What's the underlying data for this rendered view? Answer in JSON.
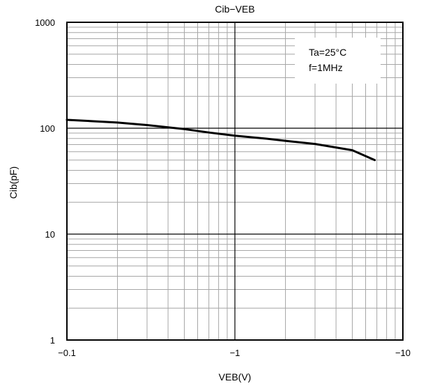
{
  "chart_data": {
    "type": "line",
    "title": "Cib−VEB",
    "xlabel": "VEB(V)",
    "ylabel": "Cib(pF)",
    "x_scale": "log",
    "y_scale": "log",
    "x_direction": "reversed",
    "xlim": [
      -0.1,
      -10
    ],
    "ylim": [
      1,
      1000
    ],
    "x_ticks": [
      {
        "value": -0.1,
        "label": "−0.1"
      },
      {
        "value": -1,
        "label": "−1"
      },
      {
        "value": -10,
        "label": "−10"
      }
    ],
    "y_ticks": [
      {
        "value": 1,
        "label": "1"
      },
      {
        "value": 10,
        "label": "10"
      },
      {
        "value": 100,
        "label": "100"
      },
      {
        "value": 1000,
        "label": "1000"
      }
    ],
    "grid": true,
    "annotations": [
      "Ta=25°C",
      "f=1MHz"
    ],
    "annotation_placement": "top-right",
    "series": [
      {
        "color": "#000000",
        "x": [
          -0.1,
          -0.15,
          -0.2,
          -0.3,
          -0.5,
          -0.7,
          -1,
          -1.5,
          -2,
          -3,
          -5,
          -6.8
        ],
        "y": [
          120,
          116,
          113,
          107,
          98,
          91,
          85,
          80,
          76,
          71,
          62,
          50
        ]
      }
    ]
  }
}
